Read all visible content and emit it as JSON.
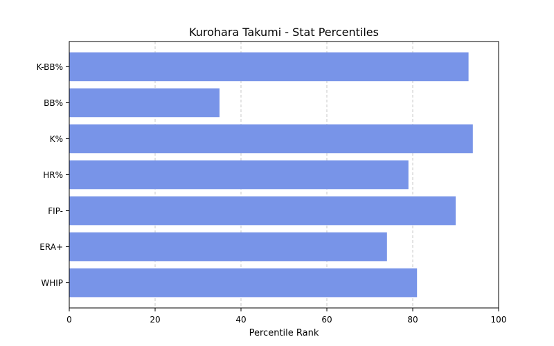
{
  "chart_data": {
    "type": "bar",
    "orientation": "horizontal",
    "title": "Kurohara Takumi - Stat Percentiles",
    "xlabel": "Percentile Rank",
    "ylabel": "",
    "xlim": [
      0,
      100
    ],
    "xticks": [
      0,
      20,
      40,
      60,
      80,
      100
    ],
    "grid": "x-dashed",
    "legend": "none",
    "bar_color": "#7894e8",
    "categories": [
      "WHIP",
      "ERA+",
      "FIP-",
      "HR%",
      "K%",
      "BB%",
      "K-BB%"
    ],
    "values": [
      81,
      74,
      90,
      79,
      94,
      35,
      93
    ]
  }
}
